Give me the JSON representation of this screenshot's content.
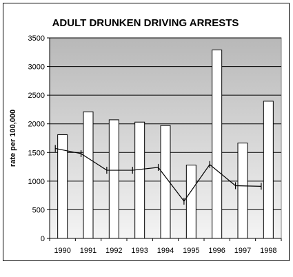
{
  "chart_data": {
    "type": "bar",
    "title": "ADULT DRUNKEN DRIVING ARRESTS",
    "xlabel": "",
    "ylabel": "rate per 100,000",
    "categories": [
      "1990",
      "1991",
      "1992",
      "1993",
      "1994",
      "1995",
      "1996",
      "1997",
      "1998"
    ],
    "series": [
      {
        "type": "bar",
        "values": [
          1810,
          2210,
          2070,
          2030,
          1970,
          1280,
          3290,
          1665,
          2395
        ]
      },
      {
        "type": "line",
        "values": [
          1570,
          1480,
          1190,
          1190,
          1240,
          650,
          1290,
          920,
          910
        ]
      }
    ],
    "ylim": [
      0,
      3500
    ],
    "yticks": [
      0,
      500,
      1000,
      1500,
      2000,
      2500,
      3000,
      3500
    ],
    "grid": true,
    "colors": {
      "bar_fill": "#ffffff",
      "bar_stroke": "#000000",
      "line": "#000000",
      "bg_top": "#b8b8b8",
      "bg_bottom": "#f4f4f4"
    }
  }
}
